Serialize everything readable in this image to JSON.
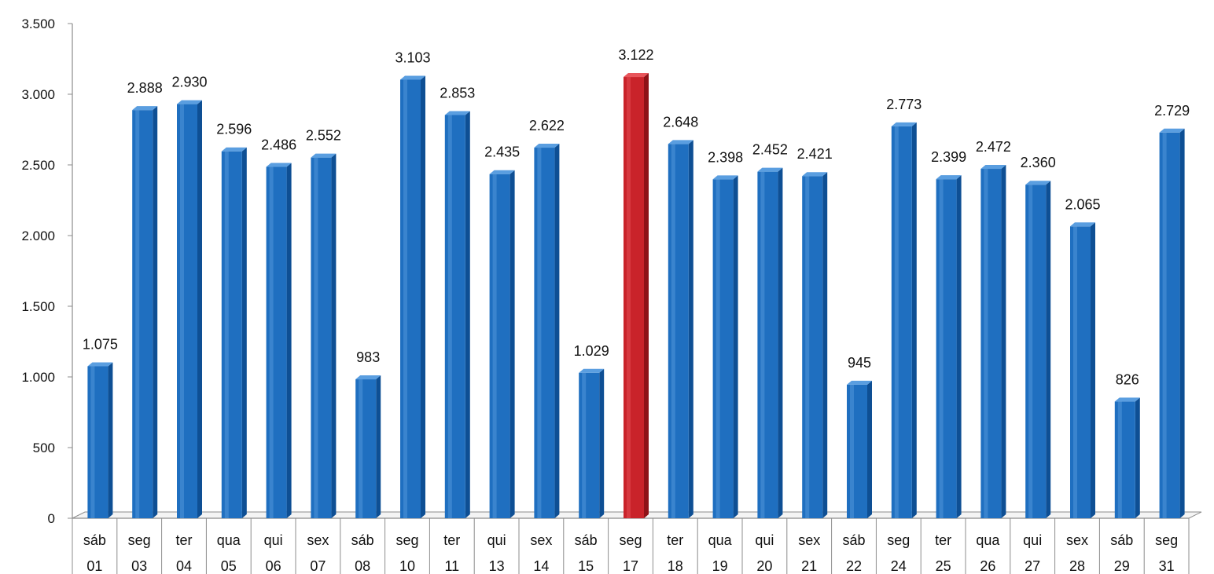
{
  "chart_data": {
    "type": "bar",
    "title": "",
    "xlabel": "",
    "ylabel": "",
    "ylim": [
      0,
      3500
    ],
    "yticks": [
      0,
      500,
      1000,
      1500,
      2000,
      2500,
      3000,
      3500
    ],
    "ytick_labels": [
      "0",
      "500",
      "1.000",
      "1.500",
      "2.000",
      "2.500",
      "3.000",
      "3.500"
    ],
    "grid": false,
    "legend": "none",
    "categories": [
      {
        "day": "sáb",
        "num": "01"
      },
      {
        "day": "seg",
        "num": "03"
      },
      {
        "day": "ter",
        "num": "04"
      },
      {
        "day": "qua",
        "num": "05"
      },
      {
        "day": "qui",
        "num": "06"
      },
      {
        "day": "sex",
        "num": "07"
      },
      {
        "day": "sáb",
        "num": "08"
      },
      {
        "day": "seg",
        "num": "10"
      },
      {
        "day": "ter",
        "num": "11"
      },
      {
        "day": "qui",
        "num": "13"
      },
      {
        "day": "sex",
        "num": "14"
      },
      {
        "day": "sáb",
        "num": "15"
      },
      {
        "day": "seg",
        "num": "17"
      },
      {
        "day": "ter",
        "num": "18"
      },
      {
        "day": "qua",
        "num": "19"
      },
      {
        "day": "qui",
        "num": "20"
      },
      {
        "day": "sex",
        "num": "21"
      },
      {
        "day": "sáb",
        "num": "22"
      },
      {
        "day": "seg",
        "num": "24"
      },
      {
        "day": "ter",
        "num": "25"
      },
      {
        "day": "qua",
        "num": "26"
      },
      {
        "day": "qui",
        "num": "27"
      },
      {
        "day": "sex",
        "num": "28"
      },
      {
        "day": "sáb",
        "num": "29"
      },
      {
        "day": "seg",
        "num": "31"
      }
    ],
    "values": [
      1075,
      2888,
      2930,
      2596,
      2486,
      2552,
      983,
      3103,
      2853,
      2435,
      2622,
      1029,
      3122,
      2648,
      2398,
      2452,
      2421,
      945,
      2773,
      2399,
      2472,
      2360,
      2065,
      826,
      2729
    ],
    "value_labels": [
      "1.075",
      "2.888",
      "2.930",
      "2.596",
      "2.486",
      "2.552",
      "983",
      "3.103",
      "2.853",
      "2.435",
      "2.622",
      "1.029",
      "3.122",
      "2.648",
      "2.398",
      "2.452",
      "2.421",
      "945",
      "2.773",
      "2.399",
      "2.472",
      "2.360",
      "2.065",
      "826",
      "2.729"
    ],
    "highlight_index": 12,
    "colors": {
      "bar": "#1f6fc0",
      "bar_dark": "#0e4f94",
      "bar_light": "#5a9ee0",
      "highlight": "#c9232a",
      "highlight_dark": "#8e1217",
      "highlight_light": "#e8555b",
      "axis": "#8c8c8c"
    }
  }
}
